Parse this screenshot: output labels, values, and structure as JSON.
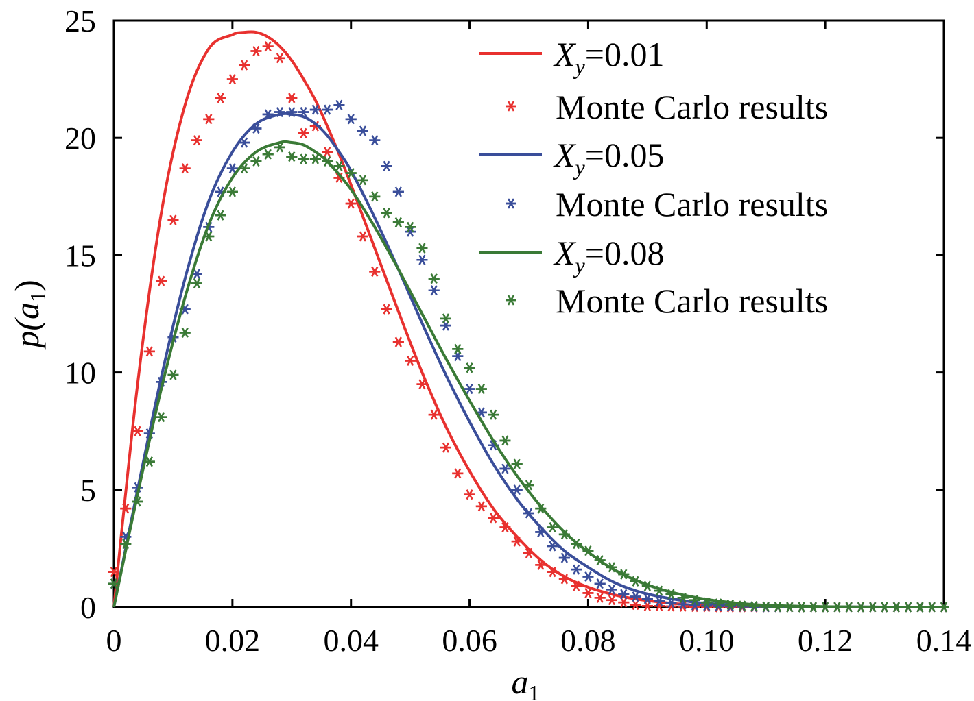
{
  "chart_data": {
    "type": "line",
    "xlabel": {
      "base": "a",
      "sub": "1"
    },
    "ylabel": {
      "fn": "p(",
      "base": "a",
      "sub": "1",
      "close": ")"
    },
    "xlim": [
      0,
      0.14
    ],
    "ylim": [
      0,
      25
    ],
    "xticks": [
      0,
      0.02,
      0.04,
      0.06,
      0.08,
      0.1,
      0.12,
      0.14
    ],
    "xtick_labels": [
      "0",
      "0.02",
      "0.04",
      "0.06",
      "0.08",
      "0.10",
      "0.12",
      "0.14"
    ],
    "yticks": [
      0,
      5,
      10,
      15,
      20,
      25
    ],
    "ytick_labels": [
      "0",
      "5",
      "10",
      "15",
      "20",
      "25"
    ],
    "grid": false,
    "legend_position": "top-right",
    "series": [
      {
        "name": "X_y=0.01",
        "label": {
          "base": "X",
          "sub": "y",
          "rest": "=0.01"
        },
        "kind": "line",
        "color": "#e8312f",
        "x": [
          0,
          0.004,
          0.008,
          0.012,
          0.016,
          0.02,
          0.022,
          0.024,
          0.026,
          0.028,
          0.03,
          0.032,
          0.034,
          0.036,
          0.038,
          0.04,
          0.044,
          0.048,
          0.052,
          0.056,
          0.06,
          0.064,
          0.068,
          0.072,
          0.076,
          0.08,
          0.084,
          0.088,
          0.092,
          0.096,
          0.1,
          0.11,
          0.12,
          0.13,
          0.14
        ],
        "y": [
          0,
          9.5,
          16.8,
          21.4,
          23.8,
          24.4,
          24.5,
          24.5,
          24.3,
          23.9,
          23.3,
          22.5,
          21.6,
          20.5,
          19.3,
          18.0,
          15.3,
          12.6,
          10.0,
          7.7,
          5.8,
          4.2,
          3.0,
          2.0,
          1.3,
          0.85,
          0.55,
          0.35,
          0.22,
          0.12,
          0.06,
          0.02,
          0.005,
          0,
          0
        ]
      },
      {
        "name": "Monte Carlo results",
        "kind": "scatter",
        "color": "#e8312f",
        "x": [
          0,
          0.002,
          0.004,
          0.006,
          0.008,
          0.01,
          0.012,
          0.014,
          0.016,
          0.018,
          0.02,
          0.022,
          0.024,
          0.026,
          0.028,
          0.03,
          0.032,
          0.034,
          0.036,
          0.038,
          0.04,
          0.042,
          0.044,
          0.046,
          0.048,
          0.05,
          0.052,
          0.054,
          0.056,
          0.058,
          0.06,
          0.062,
          0.064,
          0.066,
          0.068,
          0.07,
          0.072,
          0.074,
          0.076,
          0.078,
          0.08,
          0.082,
          0.084,
          0.086,
          0.088,
          0.09,
          0.092,
          0.094,
          0.096,
          0.098,
          0.1,
          0.102,
          0.104,
          0.106,
          0.108,
          0.11,
          0.112,
          0.114,
          0.116,
          0.118,
          0.12,
          0.122,
          0.124,
          0.126,
          0.128,
          0.13,
          0.132,
          0.134,
          0.136,
          0.138,
          0.14
        ],
        "y": [
          1.5,
          4.2,
          7.5,
          10.9,
          13.9,
          16.5,
          18.7,
          19.9,
          20.8,
          21.7,
          22.5,
          23.1,
          23.7,
          23.9,
          23.4,
          21.7,
          20.2,
          20.5,
          19.4,
          18.3,
          17.2,
          15.8,
          14.3,
          12.7,
          11.3,
          10.5,
          9.5,
          8.2,
          6.8,
          5.7,
          4.8,
          4.3,
          3.8,
          3.4,
          2.8,
          2.3,
          1.8,
          1.5,
          1.2,
          0.9,
          0.6,
          0.4,
          0.3,
          0.2,
          0.1,
          0.05,
          0.05,
          0.03,
          0.02,
          0.01,
          0.01,
          0,
          0,
          0,
          0,
          0,
          0,
          0,
          0,
          0,
          0,
          0,
          0,
          0,
          0,
          0,
          0,
          0,
          0,
          0,
          0
        ]
      },
      {
        "name": "X_y=0.05",
        "label": {
          "base": "X",
          "sub": "y",
          "rest": "=0.05"
        },
        "kind": "line",
        "color": "#3a4e9a",
        "x": [
          0,
          0.004,
          0.008,
          0.012,
          0.016,
          0.02,
          0.024,
          0.028,
          0.03,
          0.032,
          0.034,
          0.036,
          0.038,
          0.04,
          0.044,
          0.048,
          0.052,
          0.056,
          0.06,
          0.064,
          0.068,
          0.072,
          0.076,
          0.08,
          0.084,
          0.088,
          0.092,
          0.096,
          0.1,
          0.11,
          0.12,
          0.13,
          0.14
        ],
        "y": [
          0,
          5.0,
          9.8,
          14.0,
          17.3,
          19.4,
          20.6,
          21.0,
          21.0,
          20.9,
          20.6,
          20.1,
          19.4,
          18.6,
          16.6,
          14.4,
          12.1,
          9.9,
          7.9,
          6.1,
          4.6,
          3.4,
          2.4,
          1.7,
          1.1,
          0.7,
          0.45,
          0.28,
          0.16,
          0.04,
          0.01,
          0,
          0
        ]
      },
      {
        "name": "Monte Carlo results",
        "kind": "scatter",
        "color": "#3a4e9a",
        "x": [
          0,
          0.002,
          0.004,
          0.006,
          0.008,
          0.01,
          0.012,
          0.014,
          0.016,
          0.018,
          0.02,
          0.022,
          0.024,
          0.026,
          0.028,
          0.03,
          0.032,
          0.034,
          0.036,
          0.038,
          0.04,
          0.042,
          0.044,
          0.046,
          0.048,
          0.05,
          0.052,
          0.054,
          0.056,
          0.058,
          0.06,
          0.062,
          0.064,
          0.066,
          0.068,
          0.07,
          0.072,
          0.074,
          0.076,
          0.078,
          0.08,
          0.082,
          0.084,
          0.086,
          0.088,
          0.09,
          0.092,
          0.094,
          0.096,
          0.098,
          0.1,
          0.102,
          0.104,
          0.106,
          0.108,
          0.11,
          0.112,
          0.114,
          0.116,
          0.118,
          0.12,
          0.122,
          0.124,
          0.126,
          0.128,
          0.13,
          0.132,
          0.134,
          0.136,
          0.138,
          0.14
        ],
        "y": [
          1.0,
          3.0,
          5.1,
          7.4,
          9.6,
          11.5,
          12.7,
          14.2,
          16.2,
          17.7,
          18.7,
          19.8,
          20.4,
          21.0,
          21.1,
          21.1,
          21.1,
          21.2,
          21.2,
          21.4,
          20.8,
          20.3,
          19.9,
          18.8,
          17.7,
          16.0,
          14.8,
          13.5,
          12.0,
          10.7,
          9.3,
          8.3,
          6.9,
          5.9,
          5.0,
          4.0,
          3.2,
          2.6,
          2.1,
          1.6,
          1.3,
          1.0,
          0.75,
          0.55,
          0.45,
          0.35,
          0.25,
          0.18,
          0.12,
          0.08,
          0.06,
          0.04,
          0.03,
          0.02,
          0.01,
          0,
          0,
          0,
          0,
          0,
          0,
          0,
          0,
          0,
          0,
          0,
          0,
          0,
          0,
          0,
          0
        ]
      },
      {
        "name": "X_y=0.08",
        "label": {
          "base": "X",
          "sub": "y",
          "rest": "=0.08"
        },
        "kind": "line",
        "color": "#3a7a36",
        "x": [
          0,
          0.004,
          0.008,
          0.012,
          0.016,
          0.02,
          0.024,
          0.028,
          0.03,
          0.032,
          0.034,
          0.036,
          0.04,
          0.044,
          0.048,
          0.052,
          0.056,
          0.06,
          0.064,
          0.068,
          0.072,
          0.076,
          0.08,
          0.084,
          0.088,
          0.092,
          0.096,
          0.1,
          0.104,
          0.11,
          0.12,
          0.13,
          0.14
        ],
        "y": [
          0,
          4.8,
          9.3,
          13.2,
          16.3,
          18.3,
          19.4,
          19.8,
          19.8,
          19.7,
          19.4,
          19.0,
          17.8,
          16.2,
          14.4,
          12.5,
          10.6,
          8.8,
          7.1,
          5.6,
          4.3,
          3.2,
          2.35,
          1.65,
          1.15,
          0.78,
          0.52,
          0.33,
          0.2,
          0.08,
          0.02,
          0,
          0
        ]
      },
      {
        "name": "Monte Carlo results",
        "kind": "scatter",
        "color": "#3a7a36",
        "x": [
          0,
          0.002,
          0.004,
          0.006,
          0.008,
          0.01,
          0.012,
          0.014,
          0.016,
          0.018,
          0.02,
          0.022,
          0.024,
          0.026,
          0.028,
          0.03,
          0.032,
          0.034,
          0.036,
          0.038,
          0.04,
          0.042,
          0.044,
          0.046,
          0.048,
          0.05,
          0.052,
          0.054,
          0.056,
          0.058,
          0.06,
          0.062,
          0.064,
          0.066,
          0.068,
          0.07,
          0.072,
          0.074,
          0.076,
          0.078,
          0.08,
          0.082,
          0.084,
          0.086,
          0.088,
          0.09,
          0.092,
          0.094,
          0.096,
          0.098,
          0.1,
          0.102,
          0.104,
          0.106,
          0.108,
          0.11,
          0.112,
          0.114,
          0.116,
          0.118,
          0.12,
          0.122,
          0.124,
          0.126,
          0.128,
          0.13,
          0.132,
          0.134,
          0.136,
          0.138,
          0.14
        ],
        "y": [
          1.0,
          2.7,
          4.5,
          6.2,
          8.1,
          9.9,
          11.7,
          13.8,
          15.8,
          16.7,
          17.7,
          18.7,
          19.0,
          19.3,
          19.6,
          19.2,
          19.1,
          19.1,
          19.0,
          18.8,
          18.5,
          18.2,
          17.5,
          16.8,
          16.4,
          16.2,
          15.3,
          14.0,
          12.3,
          11.0,
          10.2,
          9.3,
          8.2,
          7.1,
          6.1,
          5.2,
          4.2,
          3.4,
          3.1,
          2.7,
          2.4,
          2.0,
          1.7,
          1.4,
          1.1,
          0.9,
          0.7,
          0.55,
          0.4,
          0.3,
          0.2,
          0.15,
          0.1,
          0.06,
          0.04,
          0.02,
          0.01,
          0,
          0,
          0,
          0,
          0,
          0,
          0,
          0,
          0,
          0,
          0,
          0,
          0,
          0
        ]
      }
    ]
  }
}
